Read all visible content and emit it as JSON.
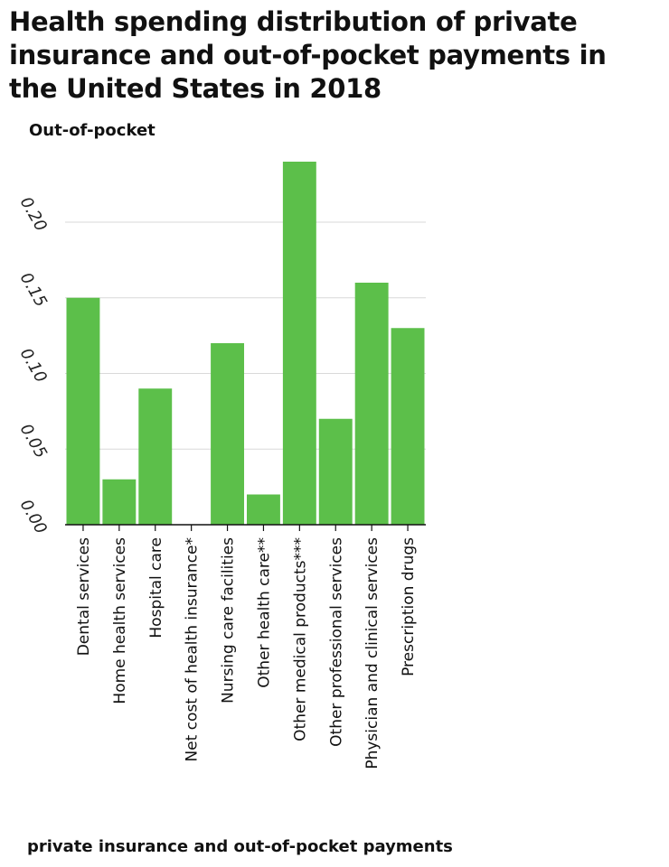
{
  "chart_data": {
    "type": "bar",
    "title": "Health spending distribution of private insurance and out-of-pocket payments in the United States in 2018",
    "ylabel": "Out-of-pocket",
    "xlabel": "private insurance and out-of-pocket payments",
    "categories": [
      "Dental services",
      "Home health services",
      "Hospital care",
      "Net cost of health insurance*",
      "Nursing care facilities",
      "Other health care**",
      "Other medical products***",
      "Other professional services",
      "Physician and clinical services",
      "Prescription drugs"
    ],
    "values": [
      0.15,
      0.03,
      0.09,
      0.0,
      0.12,
      0.02,
      0.24,
      0.07,
      0.16,
      0.13
    ],
    "ylim": [
      0,
      0.24
    ],
    "yticks": [
      "0.00",
      "0.05",
      "0.10",
      "0.15",
      "0.20"
    ],
    "grid": true,
    "bar_color": "#5cbf4a"
  }
}
